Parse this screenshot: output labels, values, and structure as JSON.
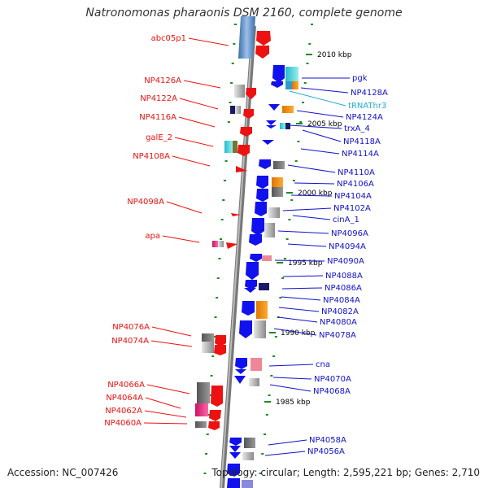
{
  "title": "Natronomonas pharaonis DSM 2160, complete genome",
  "footer": {
    "accession": "Accession: NC_007426",
    "summary": "Topology: circular; Length: 2,595,221 bp; Genes: 2,710"
  },
  "colors": {
    "forward": "#ee1111",
    "reverse": "#1111ee",
    "trna": "#22aadd",
    "backbone": "#888888",
    "ticks": "#228822"
  },
  "kbp_labels": [
    "2010 kbp",
    "2005 kbp",
    "2000 kbp",
    "1995 kbp",
    "1990 kbp",
    "1985 kbp"
  ],
  "left_labels": [
    "abc05p1",
    "NP4126A",
    "NP4122A",
    "NP4116A",
    "galE_2",
    "NP4108A",
    "NP4098A",
    "apa",
    "NP4076A",
    "NP4074A",
    "NP4066A",
    "NP4064A",
    "NP4062A",
    "NP4060A"
  ],
  "right_labels": [
    "pgk",
    "NP4128A",
    "tRNAThr3",
    "NP4124A",
    "trxA_4",
    "NP4118A",
    "NP4114A",
    "NP4110A",
    "NP4106A",
    "NP4104A",
    "NP4102A",
    "cinA_1",
    "NP4096A",
    "NP4094A",
    "NP4090A",
    "NP4088A",
    "NP4086A",
    "NP4084A",
    "NP4082A",
    "NP4080A",
    "NP4078A",
    "cna",
    "NP4070A",
    "NP4068A",
    "NP4058A",
    "NP4056A"
  ]
}
